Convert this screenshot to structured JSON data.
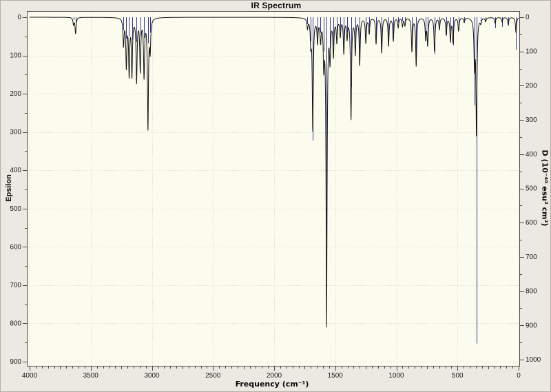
{
  "chart_data": {
    "type": "line",
    "title": "IR Spectrum",
    "xlabel": "Frequency (cm⁻¹)",
    "ylabel_left": "Epsilon",
    "ylabel_right": "D (10⁻⁴⁰ esu² cm²)",
    "legend_position": "none",
    "grid": {
      "show": true,
      "style": "dotted",
      "color": "#D8D8CA"
    },
    "colors": {
      "page_bg": "#ECE9E2",
      "plot_bg": "#FCFCEE",
      "frame": "#4A4A4A",
      "tick_text": "#1A1A1A",
      "curve": "#141414",
      "sticks": "#34349A"
    },
    "x_axis": {
      "min": 0,
      "max": 4000,
      "reversed": true,
      "major_tick_step": 500,
      "medium_tick_step": 250,
      "minor_tick_step": 50,
      "major_ticks": [
        4000,
        3500,
        3000,
        2500,
        2000,
        1500,
        1000,
        500,
        0
      ]
    },
    "y_axis_left": {
      "name": "Epsilon",
      "min": 0,
      "max": 900,
      "direction": "increasing-downward",
      "major_tick_step": 100,
      "minor_tick_step": 50,
      "major_ticks": [
        0,
        100,
        200,
        300,
        400,
        500,
        600,
        700,
        800,
        900
      ]
    },
    "y_axis_right": {
      "name": "D",
      "min": 0,
      "max": 1000,
      "direction": "increasing-downward",
      "major_tick_step": 100,
      "minor_tick_step": 50,
      "major_ticks": [
        0,
        100,
        200,
        300,
        400,
        500,
        600,
        700,
        800,
        900,
        1000
      ]
    },
    "series": [
      {
        "name": "epsilon-broadened-curve",
        "style": "lorentzian_sum",
        "axis": "left",
        "halfwidth_cm1": 5,
        "color": "#141414"
      },
      {
        "name": "dipole-strength-sticks",
        "style": "vertical_sticks",
        "axis": "right",
        "color": "#34349A"
      }
    ],
    "modes": {
      "columns": [
        "freq_cm1",
        "epsilon",
        "D_1e40_esu2cm2"
      ],
      "rows": [
        [
          3641,
          18,
          8
        ],
        [
          3624,
          42,
          15
        ],
        [
          3232,
          70,
          38
        ],
        [
          3209,
          125,
          62
        ],
        [
          3186,
          145,
          55
        ],
        [
          3163,
          148,
          66
        ],
        [
          3125,
          165,
          72
        ],
        [
          3095,
          135,
          55
        ],
        [
          3064,
          150,
          60
        ],
        [
          3032,
          285,
          76
        ],
        [
          3014,
          80,
          45
        ],
        [
          1727,
          25,
          20
        ],
        [
          1700,
          60,
          70
        ],
        [
          1684,
          290,
          360
        ],
        [
          1645,
          60,
          60
        ],
        [
          1620,
          55,
          45
        ],
        [
          1594,
          110,
          100
        ],
        [
          1571,
          799,
          643
        ],
        [
          1543,
          100,
          92
        ],
        [
          1515,
          95,
          82
        ],
        [
          1487,
          60,
          50
        ],
        [
          1459,
          45,
          40
        ],
        [
          1430,
          90,
          72
        ],
        [
          1403,
          50,
          45
        ],
        [
          1371,
          263,
          203
        ],
        [
          1336,
          92,
          88
        ],
        [
          1300,
          122,
          123
        ],
        [
          1250,
          65,
          60
        ],
        [
          1222,
          41,
          30
        ],
        [
          1166,
          68,
          55
        ],
        [
          1120,
          92,
          88
        ],
        [
          1064,
          74,
          60
        ],
        [
          1025,
          61,
          50
        ],
        [
          985,
          25,
          15
        ],
        [
          950,
          22,
          12
        ],
        [
          930,
          20,
          12
        ],
        [
          873,
          88,
          70
        ],
        [
          838,
          126,
          129
        ],
        [
          760,
          55,
          68
        ],
        [
          744,
          70,
          60
        ],
        [
          688,
          88,
          109
        ],
        [
          648,
          30,
          25
        ],
        [
          592,
          45,
          52
        ],
        [
          558,
          61,
          40
        ],
        [
          536,
          65,
          82
        ],
        [
          491,
          35,
          25
        ],
        [
          445,
          12,
          10
        ],
        [
          361,
          120,
          257
        ],
        [
          345,
          300,
          953
        ],
        [
          310,
          12,
          15
        ],
        [
          270,
          10,
          12
        ],
        [
          192,
          15,
          32
        ],
        [
          135,
          12,
          28
        ],
        [
          85,
          18,
          25
        ],
        [
          22,
          40,
          95
        ]
      ]
    }
  }
}
